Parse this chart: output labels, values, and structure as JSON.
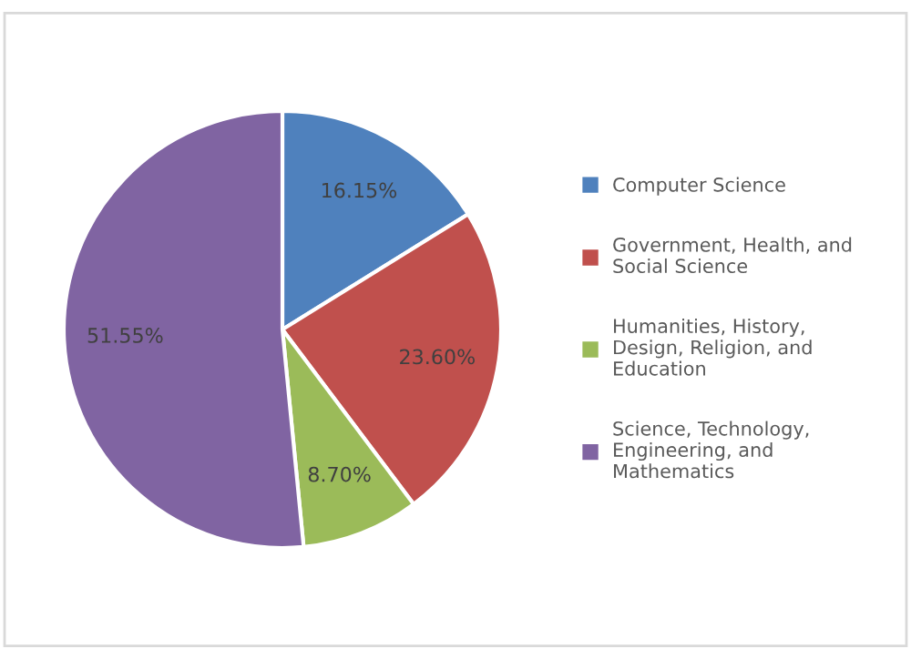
{
  "chart_data": {
    "type": "pie",
    "categories": [
      "Computer Science",
      "Government, Health, and Social Science",
      "Humanities, History, Design, Religion, and Education",
      "Science, Technology, Engineering, and Mathematics"
    ],
    "values": [
      16.15,
      23.6,
      8.7,
      51.55
    ],
    "colors": [
      "#4f81bd",
      "#c0504d",
      "#9bbb59",
      "#8064a2"
    ],
    "value_labels": [
      "16.15%",
      "23.60%",
      "8.70%",
      "51.55%"
    ],
    "legend": "right"
  }
}
